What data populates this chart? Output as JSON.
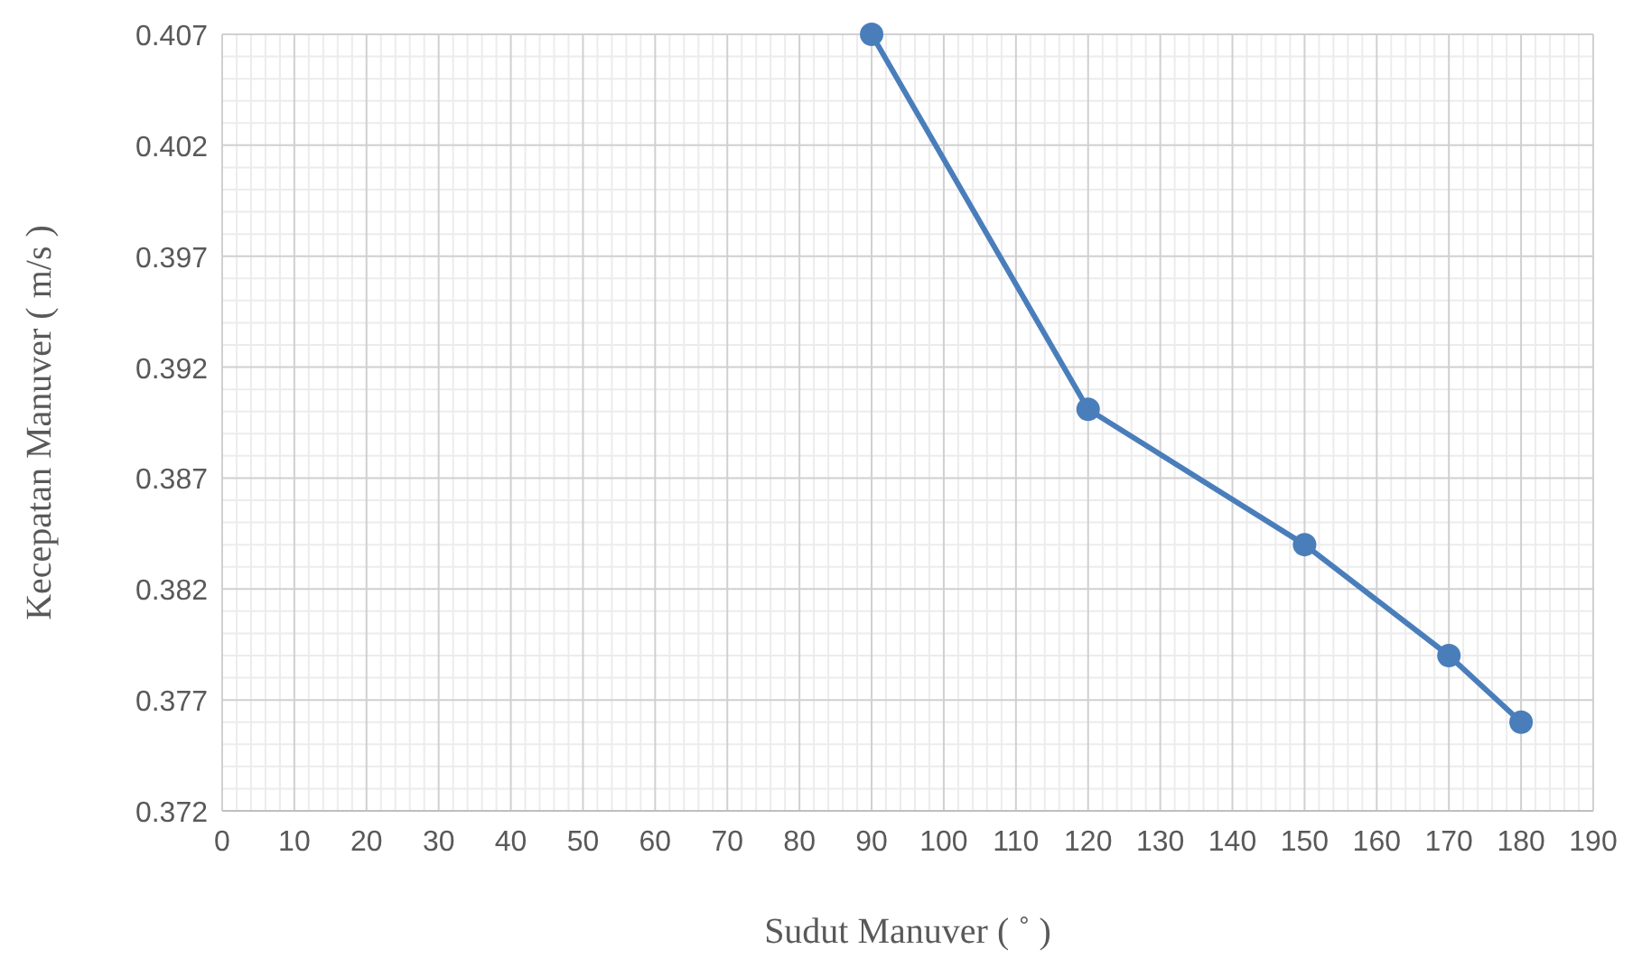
{
  "chart_data": {
    "type": "line",
    "xlabel": "Sudut Manuver ( ˚ )",
    "ylabel": "Kecepatan Manuver ( m/s )",
    "x": [
      90,
      120,
      150,
      170,
      180
    ],
    "series": [
      {
        "color": "#4a7ebb",
        "values": [
          0.407,
          0.3901,
          0.384,
          0.379,
          0.376
        ]
      }
    ],
    "xlim": [
      0,
      190
    ],
    "xticks": [
      0,
      10,
      20,
      30,
      40,
      50,
      60,
      70,
      80,
      90,
      100,
      110,
      120,
      130,
      140,
      150,
      160,
      170,
      180,
      190
    ],
    "ylim": [
      0.372,
      0.407
    ],
    "yticks": [
      0.372,
      0.377,
      0.382,
      0.387,
      0.392,
      0.397,
      0.402,
      0.407
    ],
    "grid": true,
    "marker": "circle",
    "line_style": "solid"
  }
}
